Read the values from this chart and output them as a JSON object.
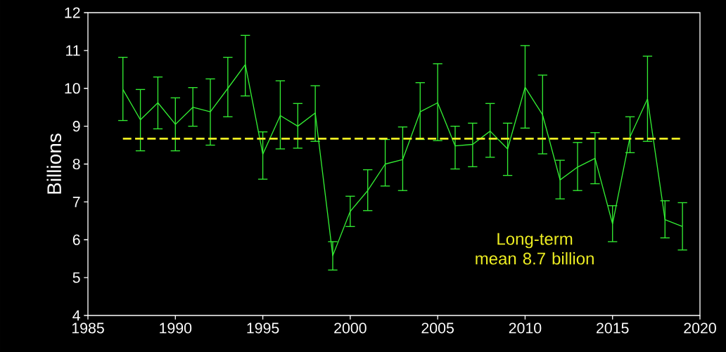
{
  "chart_data": {
    "type": "line",
    "ylabel": "Billions",
    "x": [
      1987,
      1988,
      1989,
      1990,
      1991,
      1992,
      1993,
      1994,
      1995,
      1996,
      1997,
      1998,
      1999,
      2000,
      2001,
      2002,
      2003,
      2004,
      2005,
      2006,
      2007,
      2008,
      2009,
      2010,
      2011,
      2012,
      2013,
      2014,
      2015,
      2016,
      2017,
      2018,
      2019
    ],
    "series": [
      {
        "color": "#33ee33",
        "values": [
          9.97,
          9.17,
          9.62,
          9.05,
          9.5,
          9.38,
          10.0,
          10.63,
          8.26,
          9.28,
          9.0,
          9.35,
          5.58,
          6.75,
          7.3,
          8.0,
          8.12,
          9.38,
          9.62,
          8.48,
          8.52,
          8.87,
          8.4,
          10.03,
          9.3,
          7.58,
          7.92,
          8.15,
          6.42,
          8.72,
          9.72,
          6.53,
          6.35
        ],
        "errors": [
          [
            9.15,
            10.82
          ],
          [
            8.35,
            9.97
          ],
          [
            8.93,
            10.3
          ],
          [
            8.35,
            9.75
          ],
          [
            9.0,
            10.02
          ],
          [
            8.5,
            10.25
          ],
          [
            9.25,
            10.82
          ],
          [
            9.8,
            11.4
          ],
          [
            7.6,
            8.85
          ],
          [
            8.4,
            10.2
          ],
          [
            8.42,
            9.6
          ],
          [
            8.6,
            10.07
          ],
          [
            5.2,
            5.95
          ],
          [
            6.35,
            7.15
          ],
          [
            6.77,
            7.85
          ],
          [
            7.42,
            8.65
          ],
          [
            7.3,
            8.98
          ],
          [
            8.65,
            10.15
          ],
          [
            8.62,
            10.65
          ],
          [
            7.87,
            9.0
          ],
          [
            7.93,
            9.08
          ],
          [
            8.18,
            9.6
          ],
          [
            7.7,
            9.08
          ],
          [
            8.95,
            11.13
          ],
          [
            8.27,
            10.35
          ],
          [
            7.08,
            8.1
          ],
          [
            7.3,
            8.57
          ],
          [
            7.48,
            8.83
          ],
          [
            5.95,
            6.9
          ],
          [
            8.3,
            9.25
          ],
          [
            8.6,
            10.85
          ],
          [
            6.05,
            7.03
          ],
          [
            5.73,
            6.98
          ]
        ]
      }
    ],
    "ref_lines": [
      {
        "axis": "y",
        "value": 8.67,
        "label": "Long-term mean 8.7 billion",
        "color": "#eeee22",
        "line_style": "dashed"
      }
    ],
    "xlim": [
      1985,
      2020
    ],
    "xticks": [
      1985,
      1990,
      1995,
      2000,
      2005,
      2010,
      2015,
      2020
    ],
    "ylim": [
      4,
      12
    ],
    "yticks": [
      4,
      5,
      6,
      7,
      8,
      9,
      10,
      11,
      12
    ],
    "marker": "none",
    "line_style": "solid"
  }
}
